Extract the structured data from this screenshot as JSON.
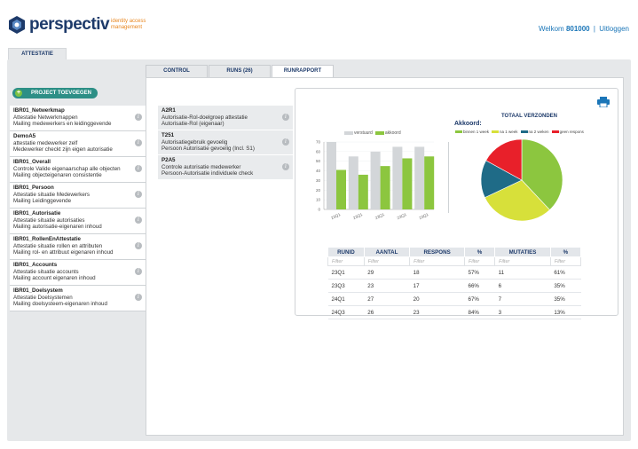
{
  "header": {
    "logo_word": "perspectiv",
    "logo_tagline": "identity access management",
    "welcome_label": "Welkom",
    "user_id": "801000",
    "separator": "|",
    "logout": "Uitloggen"
  },
  "top_tab": "ATTESTATIE",
  "add_project_button": "PROJECT TOEVOEGEN",
  "projects": [
    {
      "title": "IBR01_Netwerkmap",
      "line1": "Attestatie Netwerkmappen",
      "line2": "Mailing medewerkers en leidinggevende"
    },
    {
      "title": "DemoA5",
      "line1": "attestatie medewerker zelf",
      "line2": "Medewerker checkt zijn eigen autorisatie"
    },
    {
      "title": "IBR01_Overall",
      "line1": "Controle Valide eigenaarschap alle objecten",
      "line2": "Mailing objecteigenaren consistentie"
    },
    {
      "title": "IBR01_Persoon",
      "line1": "Attestatie situatie Medewerkers",
      "line2": "Mailing Leidinggevende"
    },
    {
      "title": "IBR01_Autorisatie",
      "line1": "Attestatie situatie autorisaties",
      "line2": "Mailing autorisatie-eigenaren inhoud"
    },
    {
      "title": "IBR01_RollenEnAttestatie",
      "line1": "Attestatie situatie rollen en attributen",
      "line2": "Mailing rol- en attribuut eigenaren inhoud"
    },
    {
      "title": "IBR01_Accounts",
      "line1": "Attestatie situatie accounts",
      "line2": "Mailing account eigenaren inhoud"
    },
    {
      "title": "IBR01_Doelsystem",
      "line1": "Attestatie Doelsystemen",
      "line2": "Mailing doelsysteem-eigenaren inhoud"
    }
  ],
  "tabs": [
    {
      "label": "CONTROL"
    },
    {
      "label": "RUNS (26)"
    },
    {
      "label": "RUNRAPPORT"
    }
  ],
  "runs": [
    {
      "title": "A2R1",
      "line1": "Autorisatie-Rol-doelgroep attestatie",
      "line2": "Autorisatie-Rol (eigenaar)"
    },
    {
      "title": "T251",
      "line1": "Autorisatiegebruik gevoelig",
      "line2": "Persoon Autorisatie gevoelig (Incl. S1)"
    },
    {
      "title": "P2A5",
      "line1": "Controle autorisatie medewerker",
      "line2": "Persoon-Autorisatie individuele check"
    }
  ],
  "chart_data": [
    {
      "type": "bar",
      "categories": [
        "23Q1",
        "23Q1",
        "23Q1",
        "23Q1",
        "23Q1"
      ],
      "series": [
        {
          "name": "verstuurd",
          "color": "#d3d6d9",
          "values": [
            70,
            55,
            60,
            65,
            65
          ]
        },
        {
          "name": "akkoord",
          "color": "#8cc63f",
          "values": [
            41,
            36,
            45,
            53,
            55
          ]
        }
      ],
      "ylim": [
        0,
        70
      ],
      "yticks": [
        0,
        10,
        20,
        30,
        40,
        50,
        60,
        70
      ]
    },
    {
      "type": "pie",
      "title": "TOTAAL VERZONDEN",
      "subtitle": "Akkoord:",
      "slices": [
        {
          "label": "binnen 1 week",
          "color": "#8cc63f",
          "value": 38
        },
        {
          "label": "na 1 week",
          "color": "#d7e03a",
          "value": 30
        },
        {
          "label": "na 2 weken",
          "color": "#1f6b87",
          "value": 15
        },
        {
          "label": "geen respons",
          "color": "#e8202a",
          "value": 17
        }
      ]
    }
  ],
  "table": {
    "columns": [
      "RUNID",
      "AANTAL",
      "RESPONS",
      "%",
      "MUTATIES",
      "%"
    ],
    "filter_placeholder": "Filter",
    "rows": [
      [
        "23Q1",
        "29",
        "18",
        "57%",
        "11",
        "61%"
      ],
      [
        "23Q3",
        "23",
        "17",
        "66%",
        "6",
        "35%"
      ],
      [
        "24Q1",
        "27",
        "20",
        "67%",
        "7",
        "35%"
      ],
      [
        "24Q3",
        "26",
        "23",
        "84%",
        "3",
        "13%"
      ]
    ]
  }
}
